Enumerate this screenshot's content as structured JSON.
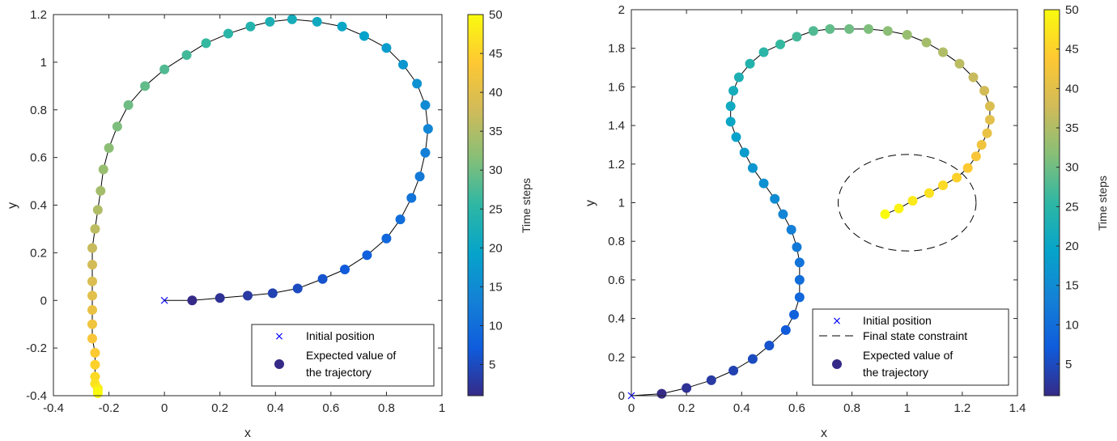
{
  "chart_data": [
    {
      "type": "scatter",
      "xlabel": "x",
      "ylabel": "y",
      "xlim": [
        -0.4,
        1
      ],
      "ylim": [
        -0.4,
        1.2
      ],
      "xticks": [
        "-0.4",
        "-0.2",
        "0",
        "0.2",
        "0.4",
        "0.6",
        "0.8",
        "1"
      ],
      "yticks": [
        "-0.4",
        "-0.2",
        "0",
        "0.2",
        "0.4",
        "0.6",
        "0.8",
        "1",
        "1.2"
      ],
      "colorbar": {
        "label": "Time steps",
        "range": [
          1,
          50
        ],
        "ticks": [
          "5",
          "10",
          "15",
          "20",
          "25",
          "30",
          "35",
          "40",
          "45",
          "50"
        ]
      },
      "initial_position": [
        0,
        0
      ],
      "series": [
        {
          "name": "Expected value of the trajectory",
          "x": [
            0.1,
            0.2,
            0.3,
            0.39,
            0.48,
            0.57,
            0.65,
            0.73,
            0.8,
            0.85,
            0.89,
            0.92,
            0.94,
            0.95,
            0.94,
            0.91,
            0.86,
            0.8,
            0.72,
            0.64,
            0.55,
            0.46,
            0.38,
            0.31,
            0.23,
            0.15,
            0.08,
            0.0,
            -0.07,
            -0.13,
            -0.17,
            -0.2,
            -0.22,
            -0.23,
            -0.24,
            -0.25,
            -0.26,
            -0.26,
            -0.26,
            -0.26,
            -0.26,
            -0.26,
            -0.26,
            -0.25,
            -0.25,
            -0.25,
            -0.25,
            -0.24,
            -0.24,
            -0.24
          ],
          "y": [
            0.0,
            0.01,
            0.02,
            0.03,
            0.05,
            0.09,
            0.13,
            0.19,
            0.26,
            0.34,
            0.43,
            0.52,
            0.62,
            0.72,
            0.82,
            0.91,
            0.99,
            1.06,
            1.11,
            1.15,
            1.17,
            1.18,
            1.17,
            1.15,
            1.12,
            1.08,
            1.03,
            0.97,
            0.9,
            0.82,
            0.73,
            0.64,
            0.55,
            0.46,
            0.38,
            0.3,
            0.22,
            0.15,
            0.08,
            0.02,
            -0.04,
            -0.1,
            -0.16,
            -0.22,
            -0.27,
            -0.32,
            -0.35,
            -0.37,
            -0.38,
            -0.39
          ]
        }
      ],
      "legend": {
        "position": "bottom-right",
        "entries": [
          "Initial position",
          "Expected value of the trajectory"
        ]
      }
    },
    {
      "type": "scatter",
      "xlabel": "x",
      "ylabel": "y",
      "xlim": [
        0,
        1.4
      ],
      "ylim": [
        0,
        2
      ],
      "xticks": [
        "0",
        "0.2",
        "0.4",
        "0.6",
        "0.8",
        "1",
        "1.2",
        "1.4"
      ],
      "yticks": [
        "0",
        "0.2",
        "0.4",
        "0.6",
        "0.8",
        "1",
        "1.2",
        "1.4",
        "1.6",
        "1.8",
        "2"
      ],
      "colorbar": {
        "label": "Time steps",
        "range": [
          1,
          50
        ],
        "ticks": [
          "5",
          "10",
          "15",
          "20",
          "25",
          "30",
          "35",
          "40",
          "45",
          "50"
        ]
      },
      "initial_position": [
        0,
        0
      ],
      "final_state_constraint": {
        "center": [
          1.0,
          1.0
        ],
        "radius_x": 0.25,
        "radius_y": 0.25
      },
      "series": [
        {
          "name": "Expected value of the trajectory",
          "x": [
            0.11,
            0.2,
            0.29,
            0.37,
            0.44,
            0.5,
            0.56,
            0.59,
            0.61,
            0.61,
            0.61,
            0.6,
            0.58,
            0.55,
            0.52,
            0.48,
            0.44,
            0.41,
            0.38,
            0.36,
            0.36,
            0.37,
            0.39,
            0.43,
            0.48,
            0.54,
            0.6,
            0.66,
            0.72,
            0.79,
            0.86,
            0.93,
            1.0,
            1.07,
            1.13,
            1.19,
            1.24,
            1.28,
            1.3,
            1.3,
            1.29,
            1.27,
            1.25,
            1.22,
            1.18,
            1.13,
            1.08,
            1.02,
            0.97,
            0.92
          ],
          "y": [
            0.01,
            0.04,
            0.08,
            0.13,
            0.19,
            0.26,
            0.34,
            0.42,
            0.51,
            0.6,
            0.69,
            0.77,
            0.86,
            0.94,
            1.02,
            1.1,
            1.18,
            1.26,
            1.34,
            1.42,
            1.5,
            1.58,
            1.65,
            1.72,
            1.78,
            1.82,
            1.86,
            1.89,
            1.9,
            1.9,
            1.9,
            1.89,
            1.87,
            1.83,
            1.78,
            1.72,
            1.65,
            1.58,
            1.5,
            1.43,
            1.36,
            1.3,
            1.24,
            1.18,
            1.13,
            1.09,
            1.05,
            1.01,
            0.97,
            0.94
          ]
        }
      ],
      "legend": {
        "position": "bottom-right",
        "entries": [
          "Initial position",
          "Final state constraint",
          "Expected value of the trajectory"
        ]
      }
    }
  ]
}
